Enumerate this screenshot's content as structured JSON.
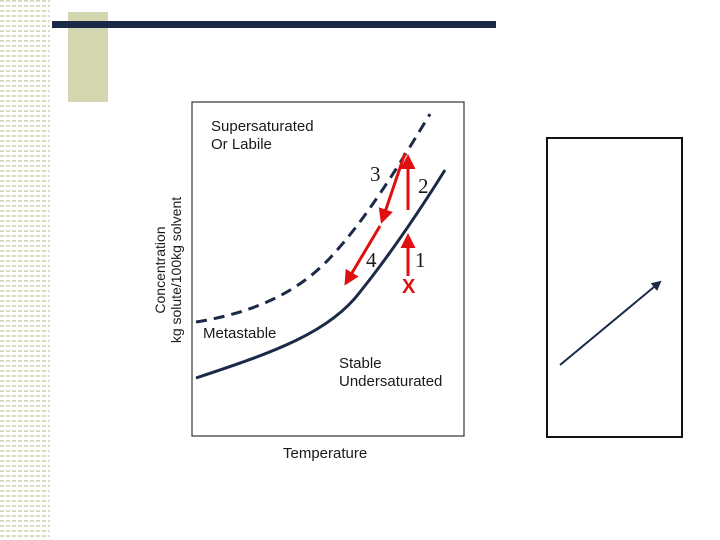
{
  "slide": {
    "colors": {
      "accent_bar": "#1b2a47",
      "stripe": "#d8dcc0",
      "tan_block": "#d4d6b0",
      "curve": "#1b2a47",
      "arrow": "#e01010"
    }
  },
  "diagram": {
    "y_axis_label": "Concentration\nkg solute/100kg solvent",
    "x_axis_label": "Temperature",
    "regions": {
      "supersaturated": "Supersaturated\nOr Labile",
      "metastable": "Metastable",
      "stable": "Stable\nUndersaturated"
    },
    "step_labels": {
      "one": "1",
      "two": "2",
      "three": "3",
      "four": "4"
    },
    "start_marker": "X"
  }
}
